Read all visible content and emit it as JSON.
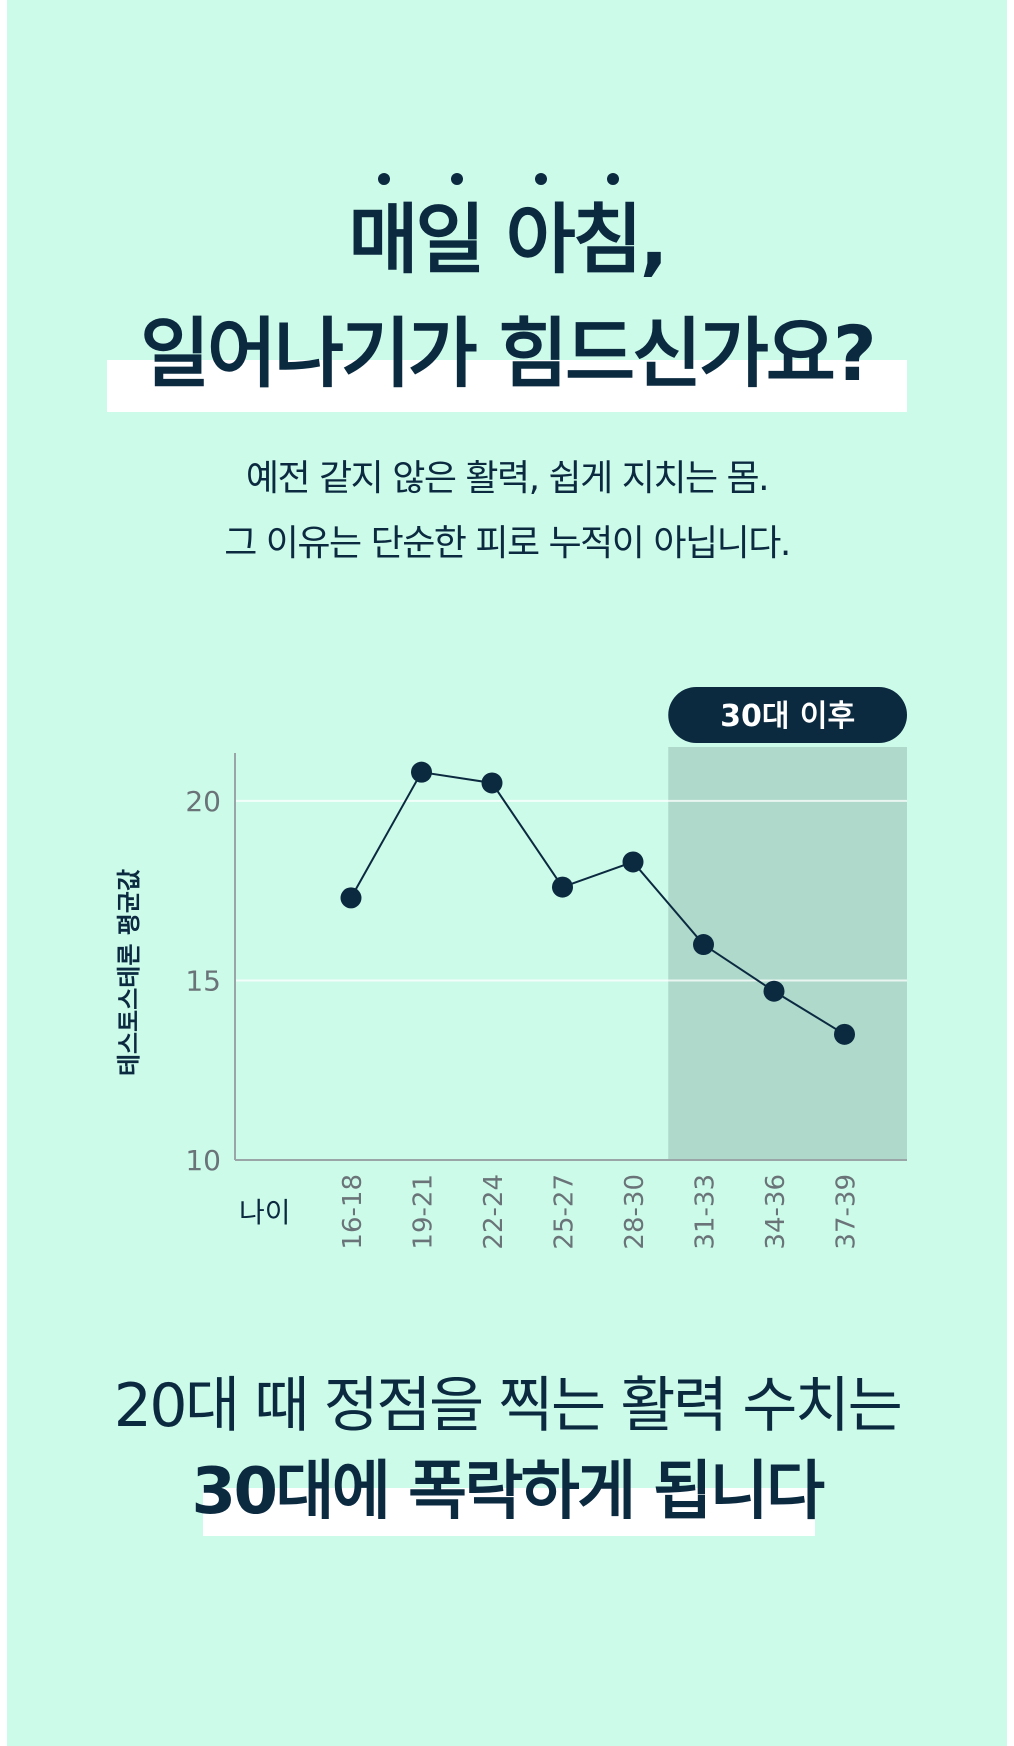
{
  "headline": {
    "line1": "매일 아침,",
    "line2": "일어나기가 힘드신가요?"
  },
  "subtext": {
    "line1": "예전 같지 않은 활력, 쉽게 지치는 몸.",
    "line2": "그 이유는 단순한 피로 누적이 아닙니다."
  },
  "chart_data": {
    "type": "line",
    "categories": [
      "16-18",
      "19-21",
      "22-24",
      "25-27",
      "28-30",
      "31-33",
      "34-36",
      "37-39"
    ],
    "values": [
      17.3,
      20.8,
      20.5,
      17.6,
      18.3,
      16.0,
      14.7,
      13.5
    ],
    "xlabel": "나이",
    "ylabel": "테스토스테론 평균값",
    "ylim": [
      10,
      21
    ],
    "yticks": [
      10,
      15,
      20
    ],
    "grid": true,
    "highlight": {
      "from": "31-33",
      "to": "37-39",
      "label": "30대 이후"
    },
    "colors": {
      "background": "#cdfbea",
      "highlight": "#aed9cb",
      "line": "#0b2a40",
      "label_bg": "#0b2a40",
      "axis": "#9aa5a8",
      "tick_text": "#6a7478",
      "grid": "#ffffff"
    }
  },
  "bottom": {
    "line1": "20대 때 정점을 찍는 활력 수치는",
    "line2": "30대에 폭락하게 됩니다"
  }
}
